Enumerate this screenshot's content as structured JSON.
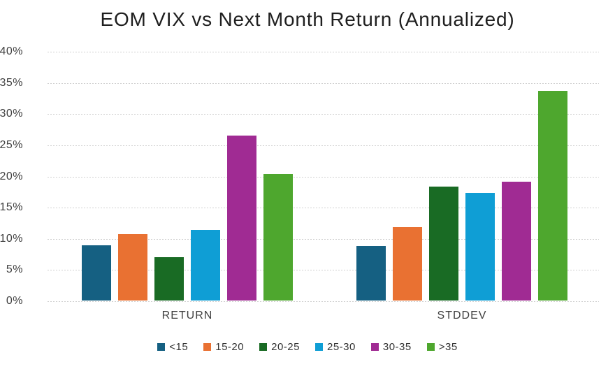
{
  "chart_data": {
    "type": "bar",
    "title": "EOM VIX vs Next Month Return (Annualized)",
    "categories": [
      "RETURN",
      "STDDEV"
    ],
    "series": [
      {
        "name": "<15",
        "color": "#156082",
        "values": [
          8.8,
          8.7
        ]
      },
      {
        "name": "15-20",
        "color": "#E97132",
        "values": [
          10.6,
          11.8
        ]
      },
      {
        "name": "20-25",
        "color": "#196B24",
        "values": [
          6.9,
          18.3
        ]
      },
      {
        "name": "25-30",
        "color": "#0F9ED5",
        "values": [
          11.3,
          17.3
        ]
      },
      {
        "name": "30-35",
        "color": "#A02B93",
        "values": [
          26.4,
          19.1
        ]
      },
      {
        "name": ">35",
        "color": "#4EA72E",
        "values": [
          20.3,
          33.6
        ]
      }
    ],
    "value_unit": "%",
    "ylim": [
      0,
      40
    ],
    "ytick_step": 5,
    "yticks": [
      "0%",
      "5%",
      "10%",
      "15%",
      "20%",
      "25%",
      "30%",
      "35%",
      "40%"
    ],
    "xlabel": "",
    "ylabel": "",
    "grid": "horizontal-dotted",
    "gridline_color": "#d0d0d0",
    "legend_position": "bottom"
  }
}
